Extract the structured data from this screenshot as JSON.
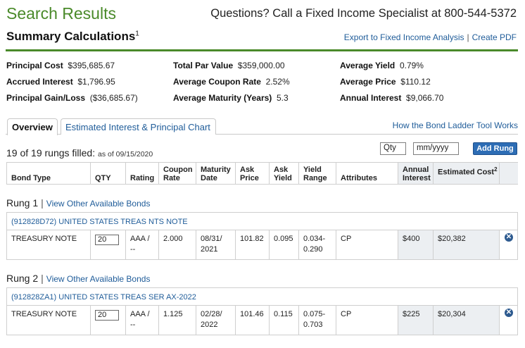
{
  "header": {
    "title": "Search Results",
    "phone_text": "Questions? Call a Fixed Income Specialist at 800-544-5372"
  },
  "summary": {
    "title": "Summary Calculations",
    "title_sup": "1",
    "export_link": "Export to Fixed Income Analysis",
    "separator": "|",
    "pdf_link": "Create PDF",
    "stats": [
      {
        "label": "Principal Cost",
        "value": "$395,685.67"
      },
      {
        "label": "Accrued Interest",
        "value": "$1,796.95"
      },
      {
        "label": "Principal Gain/Loss",
        "value": "($36,685.67)"
      },
      {
        "label": "Total Par Value",
        "value": "$359,000.00"
      },
      {
        "label": "Average Coupon Rate",
        "value": "2.52%"
      },
      {
        "label": "Average Maturity (Years)",
        "value": "5.3"
      },
      {
        "label": "Average Yield",
        "value": "0.79%"
      },
      {
        "label": "Average Price",
        "value": "$110.12"
      },
      {
        "label": "Annual Interest",
        "value": "$9,066.70"
      }
    ]
  },
  "tabs": [
    {
      "label": "Overview",
      "active": true
    },
    {
      "label": "Estimated Interest & Principal Chart",
      "active": false
    }
  ],
  "ladder_link": "How the Bond Ladder Tool Works",
  "rungs_filled": "19 of 19 rungs filled:",
  "as_of": "as of 09/15/2020",
  "qty_placeholder": "Qty",
  "date_placeholder": "mm/yyyy",
  "add_rung": "Add Rung",
  "columns": [
    "Bond Type",
    "QTY",
    "Rating",
    "Coupon Rate",
    "Maturity Date",
    "Ask Price",
    "Ask Yield",
    "Yield Range",
    "Attributes",
    "Annual Interest",
    "Estimated Cost",
    ""
  ],
  "estimated_cost_sup": "2",
  "rungs": [
    {
      "label": "Rung 1",
      "view_link": "View Other Available Bonds",
      "bond_title": "(912828D72) UNITED STATES TREAS NTS NOTE",
      "bond_type": "TREASURY NOTE",
      "qty": "20",
      "rating_1": "AAA /",
      "rating_2": "--",
      "coupon": "2.000",
      "maturity_1": "08/31/",
      "maturity_2": "2021",
      "ask_price": "101.82",
      "ask_yield": "0.095",
      "yield_1": "0.034-",
      "yield_2": "0.290",
      "attributes": "CP",
      "annual_interest": "$400",
      "est_cost": "$20,382"
    },
    {
      "label": "Rung 2",
      "view_link": "View Other Available Bonds",
      "bond_title": "(912828ZA1) UNITED STATES TREAS SER AX-2022",
      "bond_type": "TREASURY NOTE",
      "qty": "20",
      "rating_1": "AAA /",
      "rating_2": "--",
      "coupon": "1.125",
      "maturity_1": "02/28/",
      "maturity_2": "2022",
      "ask_price": "101.46",
      "ask_yield": "0.115",
      "yield_1": "0.075-",
      "yield_2": "0.703",
      "attributes": "CP",
      "annual_interest": "$225",
      "est_cost": "$20,304"
    }
  ],
  "remove_icon": "✕"
}
